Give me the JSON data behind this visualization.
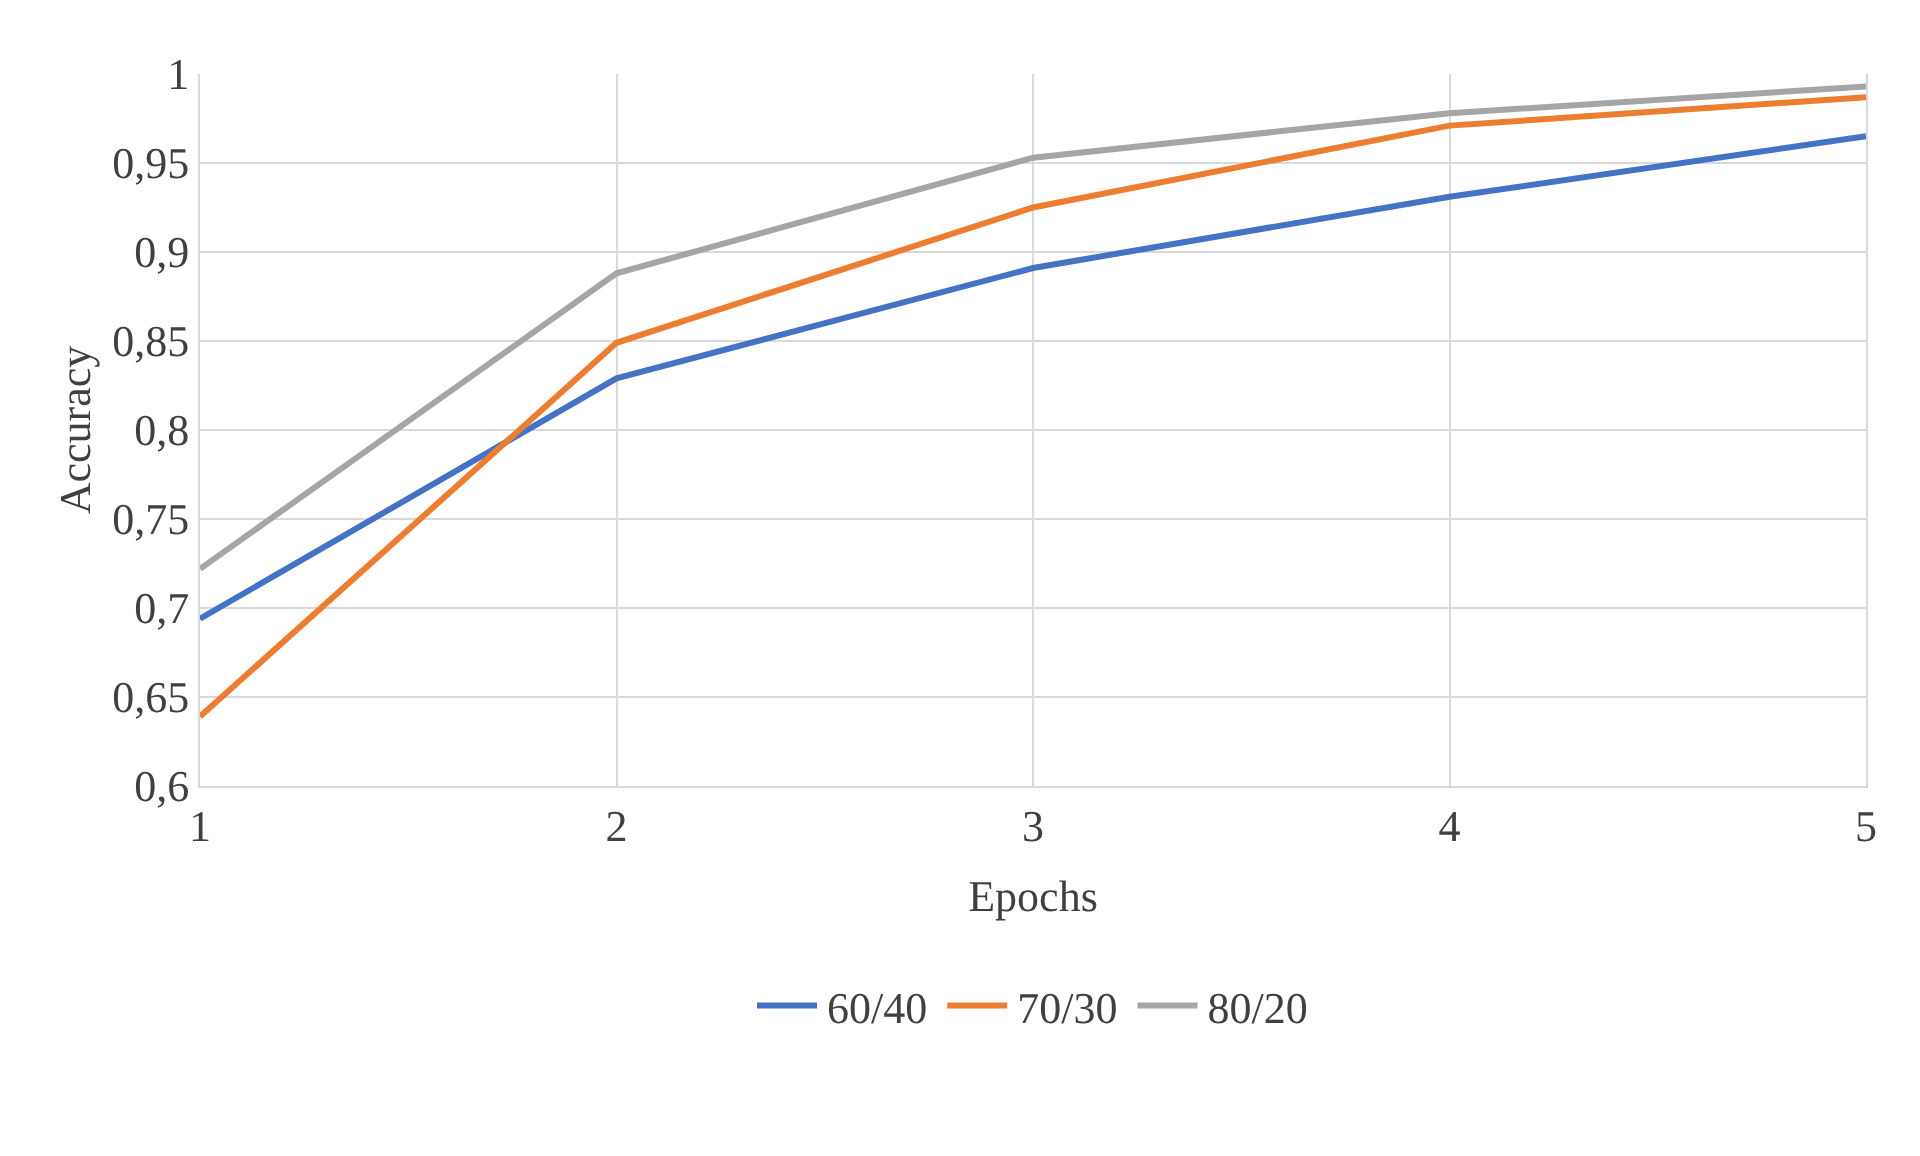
{
  "chart_data": {
    "type": "line",
    "xlabel": "Epochs",
    "ylabel": "Accuracy",
    "x": [
      1,
      2,
      3,
      4,
      5
    ],
    "series": [
      {
        "name": "60/40",
        "color": "#4472c4",
        "values": [
          0.694,
          0.829,
          0.891,
          0.931,
          0.965
        ]
      },
      {
        "name": "70/30",
        "color": "#ed7d31",
        "values": [
          0.639,
          0.849,
          0.925,
          0.971,
          0.987
        ]
      },
      {
        "name": "80/20",
        "color": "#a5a5a5",
        "values": [
          0.722,
          0.888,
          0.953,
          0.978,
          0.993
        ]
      }
    ],
    "xlim": [
      1,
      5
    ],
    "xticks": [
      1,
      2,
      3,
      4,
      5
    ],
    "ylim": [
      0.6,
      1
    ],
    "yticks": [
      {
        "value": 0.6,
        "label": "0,6"
      },
      {
        "value": 0.65,
        "label": "0,65"
      },
      {
        "value": 0.7,
        "label": "0,7"
      },
      {
        "value": 0.75,
        "label": "0,75"
      },
      {
        "value": 0.8,
        "label": "0,8"
      },
      {
        "value": 0.85,
        "label": "0,85"
      },
      {
        "value": 0.9,
        "label": "0,9"
      },
      {
        "value": 0.95,
        "label": "0,95"
      },
      {
        "value": 1,
        "label": "1"
      }
    ],
    "grid": true,
    "legend": "bottom",
    "marker": "none",
    "line_style": "solid"
  }
}
